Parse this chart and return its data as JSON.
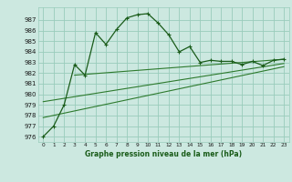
{
  "background_color": "#cce8e0",
  "grid_color": "#99ccbb",
  "line_color_main": "#1a5c1a",
  "line_color_trend": "#2d7a2d",
  "xlabel": "Graphe pression niveau de la mer (hPa)",
  "ylim": [
    975.5,
    988.2
  ],
  "xlim": [
    -0.5,
    23.5
  ],
  "yticks": [
    976,
    977,
    978,
    979,
    980,
    981,
    982,
    983,
    984,
    985,
    986,
    987
  ],
  "xticks": [
    0,
    1,
    2,
    3,
    4,
    5,
    6,
    7,
    8,
    9,
    10,
    11,
    12,
    13,
    14,
    15,
    16,
    17,
    18,
    19,
    20,
    21,
    22,
    23
  ],
  "series_main_x": [
    0,
    1,
    2,
    3,
    4,
    5,
    6,
    7,
    8,
    9,
    10,
    11,
    12,
    13,
    14,
    15,
    16,
    17,
    18,
    19,
    20,
    21,
    22,
    23
  ],
  "series_main_y": [
    976.0,
    977.0,
    979.0,
    982.8,
    981.8,
    985.8,
    984.7,
    986.1,
    987.2,
    987.5,
    987.6,
    986.7,
    985.6,
    984.0,
    984.5,
    983.0,
    983.2,
    983.1,
    983.1,
    982.8,
    983.1,
    982.7,
    983.2,
    983.3
  ],
  "series_trend1_x": [
    3,
    23
  ],
  "series_trend1_y": [
    981.8,
    983.3
  ],
  "series_trend2_x": [
    0,
    23
  ],
  "series_trend2_y": [
    979.3,
    982.9
  ],
  "series_trend3_x": [
    0,
    23
  ],
  "series_trend3_y": [
    977.8,
    982.6
  ],
  "marker": "+"
}
